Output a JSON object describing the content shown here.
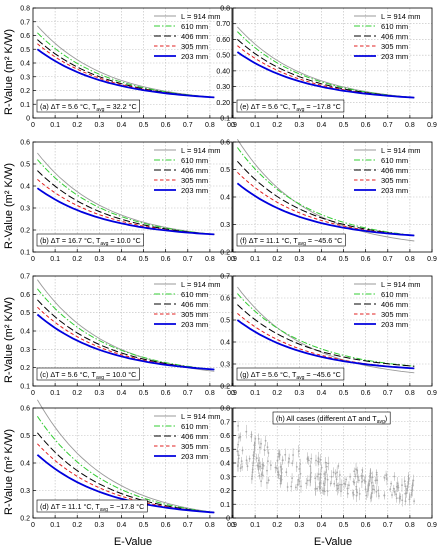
{
  "figure": {
    "ylabel": "R-Value (m² K/W)",
    "xlabel": "E-Value"
  },
  "legend_labels": [
    "L = 914 mm",
    "610 mm",
    "406 mm",
    "305 mm",
    "203 mm"
  ],
  "colors": {
    "s914": "#9a9a9a",
    "s610": "#33cc33",
    "s406": "#000000",
    "s305": "#e02020",
    "s203": "#0000dd",
    "grid": "#bdbdbd",
    "scatter": "#a9a9a9"
  },
  "chart_data": [
    {
      "type": "line",
      "panel": "a",
      "annotation": "(a) ΔT = 5.6 °C, T",
      "annotation_sub": "avg",
      "annotation_tail": " = 32.2 °C",
      "xlim": [
        0,
        0.9
      ],
      "ylim": [
        0,
        0.8
      ],
      "xticks": [
        "0",
        "0.1",
        "0.2",
        "0.3",
        "0.4",
        "0.5",
        "0.6",
        "0.7",
        "0.8",
        "0.9"
      ],
      "yticks": [
        "0",
        "0.1",
        "0.2",
        "0.3",
        "0.4",
        "0.5",
        "0.6",
        "0.7",
        "0.8"
      ],
      "legend": "top-right",
      "series": [
        {
          "name": "L = 914 mm",
          "start": 0.67,
          "end": 0.15
        },
        {
          "name": "610 mm",
          "start": 0.62,
          "end": 0.15
        },
        {
          "name": "406 mm",
          "start": 0.57,
          "end": 0.15
        },
        {
          "name": "305 mm",
          "start": 0.54,
          "end": 0.15
        },
        {
          "name": "203 mm",
          "start": 0.5,
          "end": 0.15
        }
      ]
    },
    {
      "type": "line",
      "panel": "e",
      "annotation": "(e) ΔT = 5.6 °C, T",
      "annotation_sub": "avg",
      "annotation_tail": " = −17.8 °C",
      "xlim": [
        0,
        0.9
      ],
      "ylim": [
        0.1,
        0.8
      ],
      "xticks": [
        "0",
        "0.1",
        "0.2",
        "0.3",
        "0.4",
        "0.5",
        "0.6",
        "0.7",
        "0.8",
        "0.9"
      ],
      "yticks": [
        "0.1",
        "0.20",
        "0.30",
        "0.40",
        "0.50",
        "0.60",
        "0.70",
        "0.8"
      ],
      "legend": "top-right",
      "series": [
        {
          "name": "L = 914 mm",
          "start": 0.68,
          "end": 0.23
        },
        {
          "name": "610 mm",
          "start": 0.65,
          "end": 0.23
        },
        {
          "name": "406 mm",
          "start": 0.6,
          "end": 0.23
        },
        {
          "name": "305 mm",
          "start": 0.56,
          "end": 0.23
        },
        {
          "name": "203 mm",
          "start": 0.52,
          "end": 0.23
        }
      ]
    },
    {
      "type": "line",
      "panel": "b",
      "annotation": "(b) ΔT = 16.7 °C, T",
      "annotation_sub": "avg",
      "annotation_tail": " = 10.0 °C",
      "xlim": [
        0,
        0.9
      ],
      "ylim": [
        0.1,
        0.6
      ],
      "xticks": [
        "0",
        "0.1",
        "0.2",
        "0.3",
        "0.4",
        "0.5",
        "0.6",
        "0.7",
        "0.8",
        "0.9"
      ],
      "yticks": [
        "0.1",
        "0.2",
        "0.3",
        "0.4",
        "0.5",
        "0.6"
      ],
      "legend": "top-right",
      "series": [
        {
          "name": "L = 914 mm",
          "start": 0.55,
          "end": 0.18
        },
        {
          "name": "610 mm",
          "start": 0.52,
          "end": 0.18
        },
        {
          "name": "406 mm",
          "start": 0.47,
          "end": 0.18
        },
        {
          "name": "305 mm",
          "start": 0.43,
          "end": 0.18
        },
        {
          "name": "203 mm",
          "start": 0.39,
          "end": 0.18
        }
      ]
    },
    {
      "type": "line",
      "panel": "f",
      "annotation": "(f) ΔT = 11.1 °C, T",
      "annotation_sub": "avg",
      "annotation_tail": " = −45.6 °C",
      "xlim": [
        0,
        0.9
      ],
      "ylim": [
        0.2,
        0.6
      ],
      "xticks": [
        "0",
        "0.1",
        "0.2",
        "0.3",
        "0.4",
        "0.5",
        "0.6",
        "0.7",
        "0.8",
        "0.9"
      ],
      "yticks": [
        "0.2",
        "0.3",
        "0.4",
        "0.5",
        "0.6"
      ],
      "legend": "top-right",
      "series": [
        {
          "name": "L = 914 mm",
          "start": 0.61,
          "end": 0.24
        },
        {
          "name": "610 mm",
          "start": 0.58,
          "end": 0.26
        },
        {
          "name": "406 mm",
          "start": 0.53,
          "end": 0.26
        },
        {
          "name": "305 mm",
          "start": 0.49,
          "end": 0.26
        },
        {
          "name": "203 mm",
          "start": 0.45,
          "end": 0.26
        }
      ]
    },
    {
      "type": "line",
      "panel": "c",
      "annotation": "(c) ΔT = 5.6 °C, T",
      "annotation_sub": "avg",
      "annotation_tail": " = 10.0 °C",
      "xlim": [
        0,
        0.9
      ],
      "ylim": [
        0.1,
        0.7
      ],
      "xticks": [
        "0",
        "0.1",
        "0.2",
        "0.3",
        "0.4",
        "0.5",
        "0.6",
        "0.7",
        "0.8",
        "0.9"
      ],
      "yticks": [
        "0.1",
        "0.2",
        "0.3",
        "0.4",
        "0.5",
        "0.6",
        "0.7"
      ],
      "legend": "top-right",
      "series": [
        {
          "name": "L = 914 mm",
          "start": 0.68,
          "end": 0.18
        },
        {
          "name": "610 mm",
          "start": 0.63,
          "end": 0.19
        },
        {
          "name": "406 mm",
          "start": 0.57,
          "end": 0.19
        },
        {
          "name": "305 mm",
          "start": 0.53,
          "end": 0.19
        },
        {
          "name": "203 mm",
          "start": 0.49,
          "end": 0.19
        }
      ]
    },
    {
      "type": "line",
      "panel": "g",
      "annotation": "(g) ΔT = 5.6 °C, T",
      "annotation_sub": "avg",
      "annotation_tail": " = −45.6 °C",
      "xlim": [
        0,
        0.9
      ],
      "ylim": [
        0.2,
        0.7
      ],
      "xticks": [
        "0",
        "0.1",
        "0.2",
        "0.3",
        "0.4",
        "0.5",
        "0.6",
        "0.7",
        "0.8",
        "0.9"
      ],
      "yticks": [
        "0.2",
        "0.3",
        "0.4",
        "0.5",
        "0.6",
        "0.7"
      ],
      "legend": "top-right",
      "series": [
        {
          "name": "L = 914 mm",
          "start": 0.65,
          "end": 0.26
        },
        {
          "name": "610 mm",
          "start": 0.62,
          "end": 0.29
        },
        {
          "name": "406 mm",
          "start": 0.57,
          "end": 0.29
        },
        {
          "name": "305 mm",
          "start": 0.53,
          "end": 0.28
        },
        {
          "name": "203 mm",
          "start": 0.5,
          "end": 0.28
        }
      ]
    },
    {
      "type": "line",
      "panel": "d",
      "annotation": "(d) ΔT = 11.1 °C, T",
      "annotation_sub": "avg",
      "annotation_tail": " = −17.8 °C",
      "xlim": [
        0,
        0.9
      ],
      "ylim": [
        0.2,
        0.6
      ],
      "xticks": [
        "0",
        "0.1",
        "0.2",
        "0.3",
        "0.4",
        "0.5",
        "0.6",
        "0.7",
        "0.8",
        "0.9"
      ],
      "yticks": [
        "0.2",
        "0.3",
        "0.4",
        "0.5",
        "0.6"
      ],
      "legend": "top-right",
      "series": [
        {
          "name": "L = 914 mm",
          "start": 0.63,
          "end": 0.22
        },
        {
          "name": "610 mm",
          "start": 0.57,
          "end": 0.22
        },
        {
          "name": "406 mm",
          "start": 0.51,
          "end": 0.22
        },
        {
          "name": "305 mm",
          "start": 0.47,
          "end": 0.22
        },
        {
          "name": "203 mm",
          "start": 0.43,
          "end": 0.22
        }
      ]
    },
    {
      "type": "scatter",
      "panel": "h",
      "annotation": "(h) All cases (different ΔT and T",
      "annotation_sub": "avg",
      "annotation_tail": ")",
      "xlim": [
        0,
        0.9
      ],
      "ylim": [
        0,
        0.8
      ],
      "xticks": [
        "0",
        "0.1",
        "0.2",
        "0.3",
        "0.4",
        "0.5",
        "0.6",
        "0.7",
        "0.8",
        "0.9"
      ],
      "yticks": [
        "0",
        "0.1",
        "0.2",
        "0.3",
        "0.4",
        "0.5",
        "0.6",
        "0.7",
        "0.8"
      ],
      "band": {
        "start_high": 0.68,
        "start_low": 0.3,
        "end_high": 0.3,
        "end_low": 0.12
      }
    }
  ]
}
